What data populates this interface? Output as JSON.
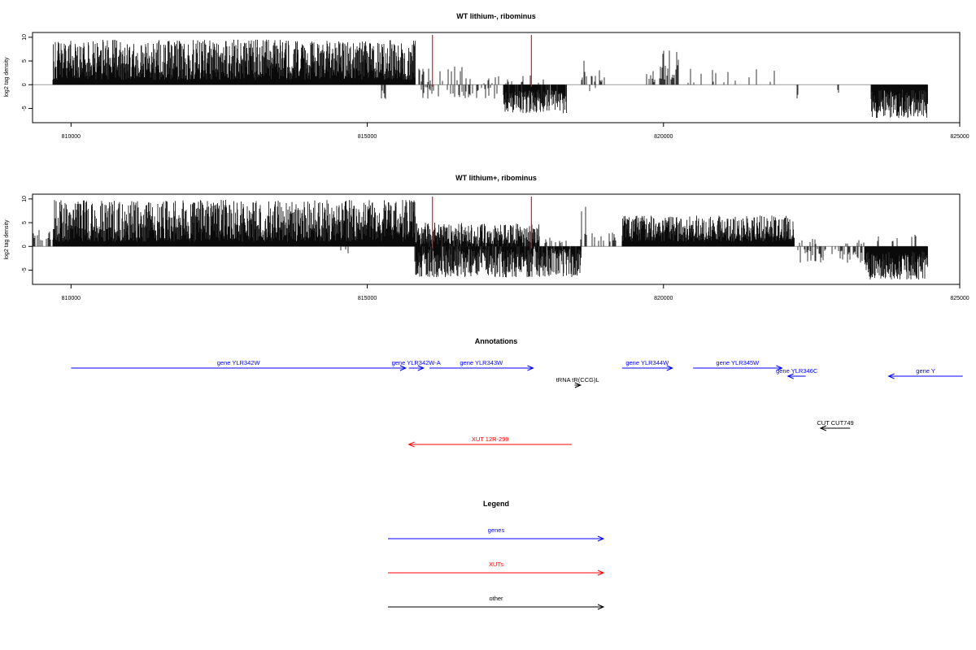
{
  "chart_data": [
    {
      "type": "bar",
      "title": "WT lithium-, ribominus",
      "ylabel": "log2 tag density",
      "xlim": [
        809350,
        825000
      ],
      "ylim": [
        -8,
        11
      ],
      "x_ticks": [
        810000,
        815000,
        820000,
        825000
      ],
      "x_tick_labels": [
        "810000",
        "815000",
        "820000",
        "825000"
      ],
      "y_ticks": [
        -5,
        0,
        5,
        10
      ],
      "y_tick_labels": [
        "-5",
        "0",
        "5",
        "10"
      ],
      "grid": false,
      "baseline_range": [
        809350,
        824450
      ],
      "markers": {
        "x": [
          816100,
          817770
        ],
        "color": "#e31a1c"
      },
      "coverage_regions": [
        {
          "start": 809700,
          "end": 815800,
          "min": 1.0,
          "max": 9.5,
          "density": 1.0
        },
        {
          "start": 815850,
          "end": 816600,
          "min": 0.5,
          "max": 4.0,
          "density": 0.25
        },
        {
          "start": 816600,
          "end": 818000,
          "min": 0.2,
          "max": 2.0,
          "density": 0.15
        },
        {
          "start": 818600,
          "end": 818700,
          "min": 1.0,
          "max": 9.5,
          "density": 0.6
        },
        {
          "start": 818700,
          "end": 819000,
          "min": 0.5,
          "max": 3.5,
          "density": 0.3
        },
        {
          "start": 819700,
          "end": 819950,
          "min": 0.5,
          "max": 3.5,
          "density": 0.4
        },
        {
          "start": 819950,
          "end": 820250,
          "min": 1.0,
          "max": 7.5,
          "density": 0.8
        },
        {
          "start": 820250,
          "end": 822000,
          "min": 0.4,
          "max": 3.5,
          "density": 0.12
        },
        {
          "start": 815200,
          "end": 815320,
          "min": -3.0,
          "max": -1.0,
          "density": 0.3
        },
        {
          "start": 815900,
          "end": 817200,
          "min": -3.0,
          "max": -0.5,
          "density": 0.35
        },
        {
          "start": 817300,
          "end": 818350,
          "min": -6.0,
          "max": -1.0,
          "density": 0.95
        },
        {
          "start": 818600,
          "end": 818900,
          "min": -1.5,
          "max": -0.5,
          "density": 0.15
        },
        {
          "start": 822250,
          "end": 822300,
          "min": -3.0,
          "max": -1.5,
          "density": 0.5
        },
        {
          "start": 822900,
          "end": 822950,
          "min": -2.0,
          "max": -1.0,
          "density": 0.4
        },
        {
          "start": 823500,
          "end": 824450,
          "min": -7.0,
          "max": -1.0,
          "density": 1.0
        }
      ]
    },
    {
      "type": "bar",
      "title": "WT lithium+, ribominus",
      "ylabel": "log2 tag density",
      "xlim": [
        809350,
        825000
      ],
      "ylim": [
        -8,
        11
      ],
      "x_ticks": [
        810000,
        815000,
        820000,
        825000
      ],
      "x_tick_labels": [
        "810000",
        "815000",
        "820000",
        "825000"
      ],
      "y_ticks": [
        -5,
        0,
        5,
        10
      ],
      "y_tick_labels": [
        "-5",
        "0",
        "5",
        "10"
      ],
      "grid": false,
      "baseline_range": [
        809350,
        824450
      ],
      "markers": {
        "x": [
          816100,
          817770
        ],
        "color": "#e31a1c"
      },
      "coverage_regions": [
        {
          "start": 809350,
          "end": 809700,
          "min": 1.0,
          "max": 3.5,
          "density": 0.5
        },
        {
          "start": 809700,
          "end": 815800,
          "min": 1.0,
          "max": 9.8,
          "density": 1.0
        },
        {
          "start": 815800,
          "end": 817900,
          "min": 0.5,
          "max": 5.0,
          "density": 0.9
        },
        {
          "start": 818000,
          "end": 818400,
          "min": 0.5,
          "max": 3.0,
          "density": 0.3
        },
        {
          "start": 818600,
          "end": 818700,
          "min": 1.0,
          "max": 9.5,
          "density": 0.6
        },
        {
          "start": 818700,
          "end": 819300,
          "min": 0.5,
          "max": 3.0,
          "density": 0.3
        },
        {
          "start": 819300,
          "end": 822200,
          "min": 1.0,
          "max": 6.5,
          "density": 1.0
        },
        {
          "start": 822200,
          "end": 824450,
          "min": 0.3,
          "max": 2.5,
          "density": 0.15
        },
        {
          "start": 814400,
          "end": 814700,
          "min": -1.5,
          "max": -0.5,
          "density": 0.15
        },
        {
          "start": 815800,
          "end": 818600,
          "min": -6.5,
          "max": -0.5,
          "density": 0.9
        },
        {
          "start": 822200,
          "end": 823400,
          "min": -3.5,
          "max": -0.5,
          "density": 0.45
        },
        {
          "start": 823400,
          "end": 824450,
          "min": -7.0,
          "max": -1.0,
          "density": 1.0
        }
      ]
    }
  ],
  "annotations": {
    "title": "Annotations",
    "items": [
      {
        "label": "gene YLR342W",
        "start": 810000,
        "end": 815650,
        "dir": "right",
        "row": 0,
        "color": "#0000ff"
      },
      {
        "label": "gene YLR342W-A",
        "start": 815700,
        "end": 815950,
        "dir": "right",
        "row": 0,
        "color": "#0000ff"
      },
      {
        "label": "gene YLR343W",
        "start": 816050,
        "end": 817800,
        "dir": "right",
        "row": 0,
        "color": "#0000ff"
      },
      {
        "label": "gene YLR344W",
        "start": 819300,
        "end": 820150,
        "dir": "right",
        "row": 0,
        "color": "#0000ff"
      },
      {
        "label": "gene YLR345W",
        "start": 820500,
        "end": 822000,
        "dir": "right",
        "row": 0,
        "color": "#0000ff"
      },
      {
        "label": "gene YLR346C",
        "start": 822100,
        "end": 822400,
        "dir": "left",
        "row": 1,
        "color": "#0000ff"
      },
      {
        "label": "gene Y",
        "start": 823800,
        "end": 825050,
        "dir": "left",
        "row": 1,
        "color": "#0000ff"
      },
      {
        "label": "tRNA tR(CCG)L",
        "start": 818500,
        "end": 818600,
        "dir": "right",
        "row": 2,
        "color": "#000000"
      },
      {
        "label": "CUT CUT749",
        "start": 822650,
        "end": 823150,
        "dir": "left",
        "row": 3,
        "color": "#000000"
      },
      {
        "label": "XUT 12R-299",
        "start": 815700,
        "end": 818450,
        "dir": "left",
        "row": 4,
        "color": "#ff0000"
      }
    ]
  },
  "legend": {
    "title": "Legend",
    "entries": [
      {
        "label": "genes",
        "color": "#0000ff"
      },
      {
        "label": "XUTs",
        "color": "#ff0000"
      },
      {
        "label": "other",
        "color": "#000000"
      }
    ]
  }
}
